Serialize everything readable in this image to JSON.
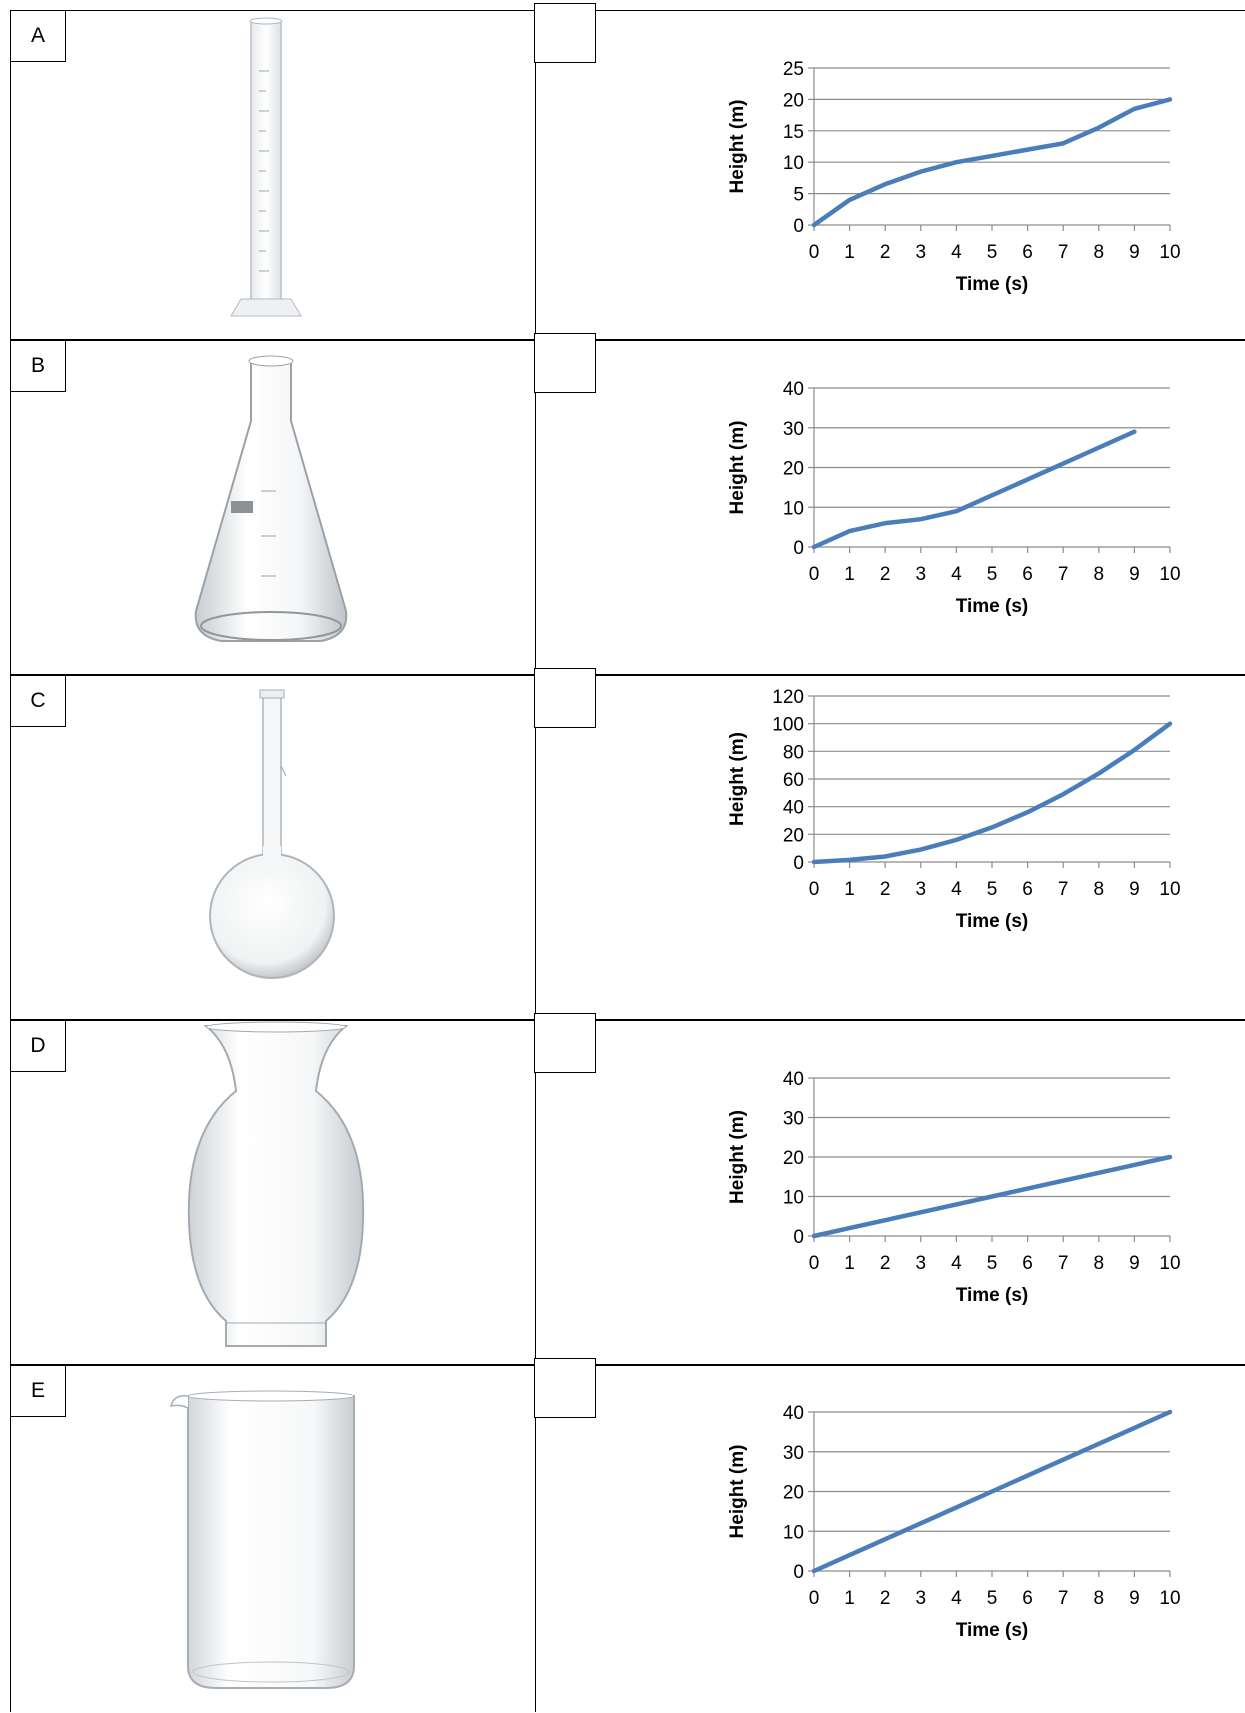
{
  "questions": [
    {
      "letter": "A",
      "vessel_icon": "graduated-cylinder-icon"
    },
    {
      "letter": "B",
      "vessel_icon": "erlenmeyer-flask-icon"
    },
    {
      "letter": "C",
      "vessel_icon": "volumetric-flask-icon"
    },
    {
      "letter": "D",
      "vessel_icon": "glass-vase-icon"
    },
    {
      "letter": "E",
      "vessel_icon": "beaker-icon"
    }
  ],
  "chart_data": [
    {
      "type": "line",
      "xlabel": "Time (s)",
      "ylabel": "Height (m)",
      "xlim": [
        0,
        10
      ],
      "ylim": [
        0,
        25
      ],
      "yticks": [
        0,
        5,
        10,
        15,
        20,
        25
      ],
      "xticks": [
        0,
        1,
        2,
        3,
        4,
        5,
        6,
        7,
        8,
        9,
        10
      ],
      "grid": true,
      "color": "#4A7EBB",
      "series": [
        {
          "x": [
            0,
            1,
            2,
            3,
            4,
            5,
            6,
            7,
            8,
            9,
            10
          ],
          "y": [
            0,
            4,
            6.5,
            8.5,
            10,
            11,
            12,
            13,
            15.5,
            18.5,
            20
          ]
        }
      ]
    },
    {
      "type": "line",
      "xlabel": "Time (s)",
      "ylabel": "Height (m)",
      "xlim": [
        0,
        10
      ],
      "ylim": [
        0,
        40
      ],
      "yticks": [
        0,
        10,
        20,
        30,
        40
      ],
      "xticks": [
        0,
        1,
        2,
        3,
        4,
        5,
        6,
        7,
        8,
        9,
        10
      ],
      "grid": true,
      "color": "#4A7EBB",
      "series": [
        {
          "x": [
            0,
            1,
            2,
            3,
            4,
            5,
            6,
            7,
            8,
            9
          ],
          "y": [
            0,
            4,
            6,
            7,
            9,
            13,
            17,
            21,
            25,
            29
          ]
        }
      ]
    },
    {
      "type": "line",
      "xlabel": "Time (s)",
      "ylabel": "Height (m)",
      "xlim": [
        0,
        10
      ],
      "ylim": [
        0,
        120
      ],
      "yticks": [
        0,
        20,
        40,
        60,
        80,
        100,
        120
      ],
      "xticks": [
        0,
        1,
        2,
        3,
        4,
        5,
        6,
        7,
        8,
        9,
        10
      ],
      "grid": true,
      "color": "#4A7EBB",
      "series": [
        {
          "x": [
            0,
            1,
            2,
            3,
            4,
            5,
            6,
            7,
            8,
            9,
            10
          ],
          "y": [
            0,
            1.5,
            4,
            9,
            16,
            25,
            36,
            49,
            64,
            81,
            100
          ]
        }
      ]
    },
    {
      "type": "line",
      "xlabel": "Time (s)",
      "ylabel": "Height (m)",
      "xlim": [
        0,
        10
      ],
      "ylim": [
        0,
        40
      ],
      "yticks": [
        0,
        10,
        20,
        30,
        40
      ],
      "xticks": [
        0,
        1,
        2,
        3,
        4,
        5,
        6,
        7,
        8,
        9,
        10
      ],
      "grid": true,
      "color": "#4A7EBB",
      "series": [
        {
          "x": [
            0,
            1,
            2,
            3,
            4,
            5,
            6,
            7,
            8,
            9,
            10
          ],
          "y": [
            0,
            2,
            4,
            6,
            8,
            10,
            12,
            14,
            16,
            18,
            20
          ]
        }
      ]
    },
    {
      "type": "line",
      "xlabel": "Time (s)",
      "ylabel": "Height (m)",
      "xlim": [
        0,
        10
      ],
      "ylim": [
        0,
        40
      ],
      "yticks": [
        0,
        10,
        20,
        30,
        40
      ],
      "xticks": [
        0,
        1,
        2,
        3,
        4,
        5,
        6,
        7,
        8,
        9,
        10
      ],
      "grid": true,
      "color": "#4A7EBB",
      "series": [
        {
          "x": [
            0,
            1,
            2,
            3,
            4,
            5,
            6,
            7,
            8,
            9,
            10
          ],
          "y": [
            0,
            4,
            8,
            12,
            16,
            20,
            24,
            28,
            32,
            36,
            40
          ]
        }
      ]
    }
  ]
}
